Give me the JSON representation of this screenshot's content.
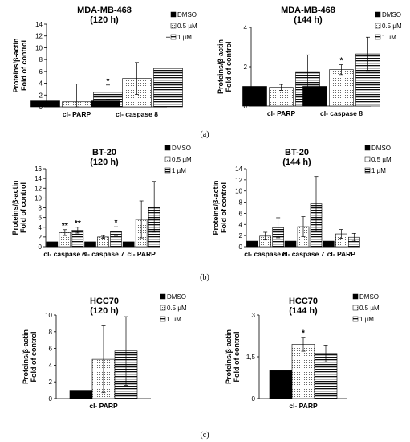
{
  "legend_labels": [
    "DMSO",
    "0.5 µM",
    "1 µM"
  ],
  "panel_labels": [
    "(a)",
    "(b)",
    "(c)"
  ],
  "chart_data": [
    {
      "type": "bar",
      "title_lines": [
        "MDA-MB-468",
        "(120 h)"
      ],
      "ylabel_lines": [
        "Proteins/β-actin",
        "Fold of control"
      ],
      "categories": [
        "cl- PARP",
        "cl- caspase 8"
      ],
      "yticks": [
        "0",
        "2",
        "4",
        "6",
        "8",
        "10",
        "12",
        "14"
      ],
      "ylim": [
        0,
        14
      ],
      "series": [
        {
          "name": "DMSO",
          "values": [
            1.0,
            1.0
          ],
          "errors": [
            0.0,
            0.0
          ],
          "stars": [
            "",
            ""
          ]
        },
        {
          "name": "0.5 µM",
          "values": [
            0.85,
            4.8
          ],
          "errors": [
            3.0,
            2.7
          ],
          "stars": [
            "",
            ""
          ]
        },
        {
          "name": "1 µM",
          "values": [
            2.5,
            6.5
          ],
          "errors": [
            1.2,
            5.3
          ],
          "stars": [
            "*",
            ""
          ]
        }
      ]
    },
    {
      "type": "bar",
      "title_lines": [
        "MDA-MB-468",
        "(144 h)"
      ],
      "ylabel_lines": [
        "Proteins/β-actin",
        "Fold of control"
      ],
      "categories": [
        "cl- PARP",
        "cl- caspase 8"
      ],
      "yticks": [
        "0",
        "2",
        "4"
      ],
      "ylim": [
        0,
        4
      ],
      "series": [
        {
          "name": "DMSO",
          "values": [
            1.0,
            1.0
          ],
          "errors": [
            0.0,
            0.0
          ],
          "stars": [
            "",
            ""
          ]
        },
        {
          "name": "0.5 µM",
          "values": [
            0.95,
            1.85
          ],
          "errors": [
            0.15,
            0.25
          ],
          "stars": [
            "",
            "*"
          ]
        },
        {
          "name": "1 µM",
          "values": [
            1.75,
            2.65
          ],
          "errors": [
            0.85,
            0.85
          ],
          "stars": [
            "",
            ""
          ]
        }
      ]
    },
    {
      "type": "bar",
      "title_lines": [
        "BT-20",
        "(120 h)"
      ],
      "ylabel_lines": [
        "Proteins/β-actin",
        "Fold of control"
      ],
      "categories": [
        "cl- caspase 8",
        "cl- caspase 7",
        "cl- PARP"
      ],
      "yticks": [
        "0",
        "2",
        "4",
        "6",
        "8",
        "10",
        "12",
        "14",
        "16"
      ],
      "ylim": [
        0,
        16
      ],
      "series": [
        {
          "name": "DMSO",
          "values": [
            1.0,
            1.0,
            1.0
          ],
          "errors": [
            0.0,
            0.0,
            0.0
          ],
          "stars": [
            "",
            "",
            ""
          ]
        },
        {
          "name": "0.5 µM",
          "values": [
            2.9,
            2.0,
            5.6
          ],
          "errors": [
            0.6,
            0.3,
            3.8
          ],
          "stars": [
            "**",
            "",
            ""
          ]
        },
        {
          "name": "1 µM",
          "values": [
            3.4,
            3.2,
            8.2
          ],
          "errors": [
            0.6,
            0.9,
            5.2
          ],
          "stars": [
            "**",
            "*",
            ""
          ]
        }
      ]
    },
    {
      "type": "bar",
      "title_lines": [
        "BT-20",
        "(144 h)"
      ],
      "ylabel_lines": [
        "Proteins/β-actin",
        "Fold of control"
      ],
      "categories": [
        "cl- caspase 8",
        "cl- caspase 7",
        "cl- PARP"
      ],
      "yticks": [
        "0",
        "2",
        "4",
        "6",
        "8",
        "10",
        "12",
        "14"
      ],
      "ylim": [
        0,
        14
      ],
      "series": [
        {
          "name": "DMSO",
          "values": [
            1.0,
            1.0,
            1.0
          ],
          "errors": [
            0.0,
            0.0,
            0.0
          ],
          "stars": [
            "",
            "",
            ""
          ]
        },
        {
          "name": "0.5 µM",
          "values": [
            1.9,
            3.6,
            2.3
          ],
          "errors": [
            0.7,
            1.8,
            0.8
          ],
          "stars": [
            "",
            "",
            ""
          ]
        },
        {
          "name": "1 µM",
          "values": [
            3.4,
            7.7,
            1.7
          ],
          "errors": [
            1.8,
            4.9,
            0.7
          ],
          "stars": [
            "",
            "",
            ""
          ]
        }
      ]
    },
    {
      "type": "bar",
      "title_lines": [
        "HCC70",
        "(120 h)"
      ],
      "ylabel_lines": [
        "Proteins/β-actin",
        "Fold of control"
      ],
      "categories": [
        "cl- PARP"
      ],
      "yticks": [
        "0",
        "2",
        "4",
        "6",
        "8",
        "10"
      ],
      "ylim": [
        0,
        10
      ],
      "series": [
        {
          "name": "DMSO",
          "values": [
            1.0
          ],
          "errors": [
            0.0
          ],
          "stars": [
            ""
          ]
        },
        {
          "name": "0.5 µM",
          "values": [
            4.7
          ],
          "errors": [
            4.0
          ],
          "stars": [
            ""
          ]
        },
        {
          "name": "1 µM",
          "values": [
            5.7
          ],
          "errors": [
            4.1
          ],
          "stars": [
            ""
          ]
        }
      ]
    },
    {
      "type": "bar",
      "title_lines": [
        "HCC70",
        "(144 h)"
      ],
      "ylabel_lines": [
        "Proteins/β-actin",
        "Fold of control"
      ],
      "categories": [
        "cl- PARP"
      ],
      "yticks": [
        "0",
        "1,5",
        "3"
      ],
      "ylim": [
        0,
        3
      ],
      "series": [
        {
          "name": "DMSO",
          "values": [
            1.0
          ],
          "errors": [
            0.0
          ],
          "stars": [
            ""
          ]
        },
        {
          "name": "0.5 µM",
          "values": [
            1.95
          ],
          "errors": [
            0.25
          ],
          "stars": [
            "*"
          ]
        },
        {
          "name": "1 µM",
          "values": [
            1.62
          ],
          "errors": [
            0.3
          ],
          "stars": [
            ""
          ]
        }
      ]
    }
  ]
}
